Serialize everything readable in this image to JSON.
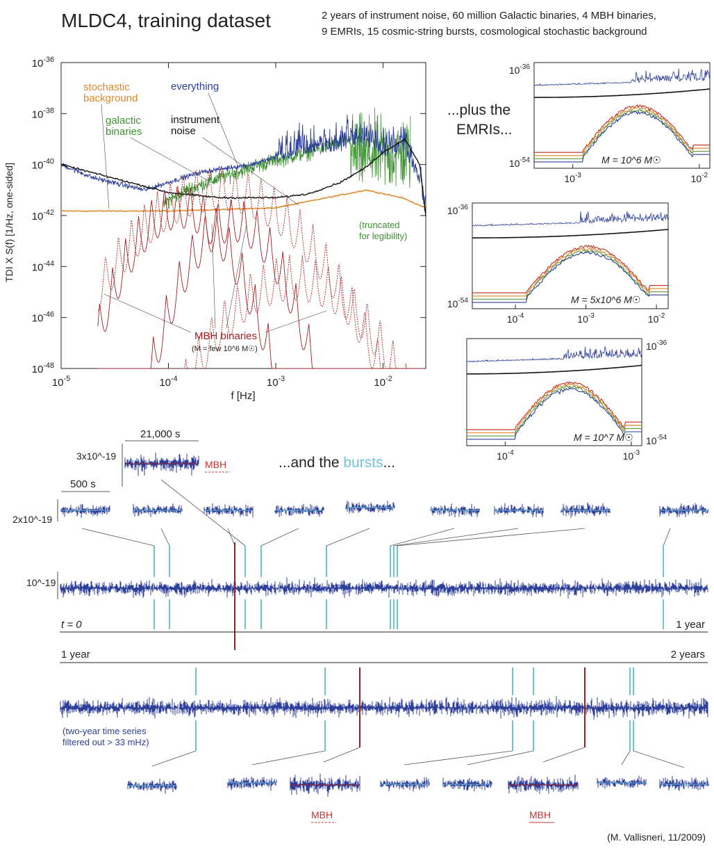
{
  "header": {
    "title": "MLDC4, training dataset",
    "subtitle_line1": "2 years of instrument noise, 60 million Galactic binaries, 4 MBH binaries,",
    "subtitle_line2": "9 EMRIs, 15 cosmic-string bursts, cosmological stochastic background"
  },
  "colors": {
    "everything": "#2d3f99",
    "instrument": "#111111",
    "galactic": "#3f8f35",
    "stochastic": "#e08a2a",
    "mbh": "#a31f1f",
    "burst": "#6fc3d3",
    "emri_red": "#c02a1a",
    "emri_orange": "#e0801f",
    "emri_green": "#5a9a3a",
    "emri_blue": "#2d3f99",
    "mbh_label": "#c83030"
  },
  "chart_data": [
    {
      "id": "main_spectrum",
      "type": "line",
      "ylabel": "TDI X S(f) [1/Hz, one-sided]",
      "xlabel": "f [Hz]",
      "xscale": "log",
      "yscale": "log",
      "xlim": [
        1e-05,
        0.025
      ],
      "ylim": [
        1e-48,
        1e-36
      ],
      "x_ticks": [
        "10^-5",
        "10^-4",
        "10^-3",
        "10^-2"
      ],
      "y_ticks": [
        "10^-36",
        "10^-38",
        "10^-40",
        "10^-42",
        "10^-44",
        "10^-46",
        "10^-48"
      ],
      "annotations": {
        "stochastic": [
          "stochastic",
          "background"
        ],
        "everything": [
          "everything"
        ],
        "galactic": [
          "galactic",
          "binaries"
        ],
        "instrument": [
          "instrument",
          "noise"
        ],
        "truncated": [
          "(truncated",
          "for legibility)"
        ],
        "mbh": [
          "MBH binaries"
        ],
        "mbh_note": "(M = few 10^6 M☉)"
      },
      "series": [
        {
          "name": "everything",
          "x": [
            1e-05,
            2e-05,
            4e-05,
            6e-05,
            0.0001,
            0.0002,
            0.0004,
            0.0006,
            0.001,
            0.002,
            0.004,
            0.006,
            0.01,
            0.016,
            0.022,
            0.025
          ],
          "y": [
            1e-40,
            3e-41,
            1.5e-41,
            1e-41,
            2e-41,
            5e-41,
            8e-41,
            1e-40,
            2e-40,
            4e-40,
            5e-40,
            1e-39,
            3e-40,
            5e-40,
            2e-41,
            1e-42
          ]
        },
        {
          "name": "instrument noise",
          "x": [
            1e-05,
            3e-05,
            0.0001,
            0.0003,
            0.001,
            0.002,
            0.004,
            0.007,
            0.01,
            0.016,
            0.022,
            0.025
          ],
          "y": [
            1e-40,
            3e-41,
            8e-42,
            5e-42,
            5e-42,
            7e-42,
            2e-41,
            8e-41,
            3e-40,
            1e-39,
            1e-40,
            1e-42
          ]
        },
        {
          "name": "galactic binaries",
          "x": [
            9e-05,
            0.00015,
            0.0003,
            0.0006,
            0.001,
            0.002,
            0.003,
            0.005
          ],
          "y": [
            3e-42,
            1e-41,
            3e-41,
            8e-41,
            1.5e-40,
            3e-40,
            5e-40,
            1e-39
          ]
        },
        {
          "name": "stochastic background",
          "x": [
            1e-05,
            0.0001,
            0.001,
            0.003,
            0.007,
            0.015,
            0.025
          ],
          "y": [
            1.5e-42,
            1.5e-42,
            2e-42,
            5e-42,
            1e-41,
            5e-42,
            2e-42
          ]
        }
      ]
    },
    {
      "id": "emri_1e6",
      "type": "line",
      "xscale": "log",
      "yscale": "log",
      "xlim": [
        0.0003,
        0.03
      ],
      "ylim": [
        1e-54,
        1e-36
      ],
      "x_ticks": [
        "10^-3",
        "10^-2"
      ],
      "y_ticks": [
        "10^-36",
        "10^-54"
      ],
      "mass_label": "M = 10^6 M☉"
    },
    {
      "id": "emri_5e6",
      "type": "line",
      "xscale": "log",
      "yscale": "log",
      "xlim": [
        0.0001,
        0.01
      ],
      "ylim": [
        1e-54,
        1e-36
      ],
      "x_ticks": [
        "10^-4",
        "10^-3",
        "10^-2"
      ],
      "y_ticks": [
        "10^-36",
        "10^-54"
      ],
      "mass_label": "M = 5x10^6 M☉"
    },
    {
      "id": "emri_1e7",
      "type": "line",
      "xscale": "log",
      "yscale": "log",
      "xlim": [
        5e-05,
        0.003
      ],
      "ylim": [
        1e-54,
        1e-36
      ],
      "x_ticks": [
        "10^-4",
        "10^-3"
      ],
      "y_ticks": [
        "10^-36",
        "10^-54"
      ],
      "mass_label": "M = 10^7 M☉"
    },
    {
      "id": "time_series",
      "type": "line",
      "y_ticks": [
        "10^-19"
      ],
      "inset_scale_y": [
        "2x10^-19",
        "3x10^-19"
      ],
      "inset_scale_x": [
        "500 s",
        "21,000 s"
      ],
      "row1": {
        "start": "t = 0",
        "end": "1 year"
      },
      "row2": {
        "start": "1 year",
        "end": "2 years"
      },
      "filter_note": [
        "(two-year time series",
        " filtered out > 33 mHz)"
      ],
      "mbh_label": "MBH"
    }
  ],
  "labels": {
    "plus_emris": [
      "...plus the",
      "EMRIs..."
    ],
    "and_the": "...and the ",
    "bursts": "bursts",
    "ellipsis": "...",
    "credit": "(M. Vallisneri, 11/2009)"
  }
}
